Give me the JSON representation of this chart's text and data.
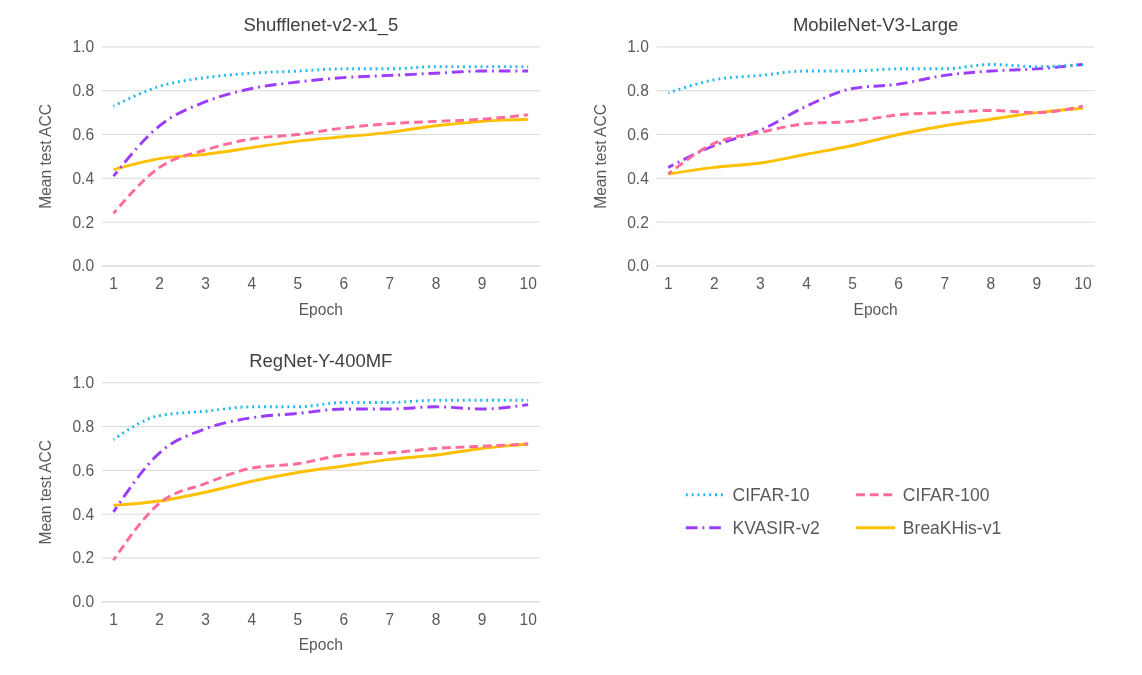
{
  "chart_data": [
    {
      "type": "line",
      "title": "Shufflenet-v2-x1_5",
      "xlabel": "Epoch",
      "ylabel": "Mean test  ACC",
      "categories": [
        "1",
        "2",
        "3",
        "4",
        "5",
        "6",
        "7",
        "8",
        "9",
        "10"
      ],
      "ylim": [
        0,
        1
      ],
      "yticks": [
        {
          "value": 0,
          "label": "0.0"
        },
        {
          "value": 0.2,
          "label": "0.2"
        },
        {
          "value": 0.4,
          "label": "0.4"
        },
        {
          "value": 0.6,
          "label": "0.6"
        },
        {
          "value": 0.8,
          "label": "0.8"
        },
        {
          "value": 1,
          "label": "1.0"
        }
      ],
      "grid": "y",
      "legend": "bottom right",
      "series": [
        {
          "name": "CIFAR-10",
          "color": "#1fb8f0",
          "line_style": "dotted",
          "values": [
            0.73,
            0.82,
            0.86,
            0.88,
            0.89,
            0.9,
            0.9,
            0.91,
            0.91,
            0.91
          ]
        },
        {
          "name": "CIFAR-100",
          "color": "#ff6b9a",
          "line_style": "dashed",
          "values": [
            0.24,
            0.45,
            0.53,
            0.58,
            0.6,
            0.63,
            0.65,
            0.66,
            0.67,
            0.69
          ]
        },
        {
          "name": "KVASIR-v2",
          "color": "#9b3cff",
          "line_style": "dashdot",
          "values": [
            0.41,
            0.64,
            0.75,
            0.81,
            0.84,
            0.86,
            0.87,
            0.88,
            0.89,
            0.89
          ]
        },
        {
          "name": "BreaKHis-v1",
          "color": "#ffc000",
          "line_style": "solid",
          "values": [
            0.44,
            0.49,
            0.51,
            0.54,
            0.57,
            0.59,
            0.61,
            0.64,
            0.66,
            0.67
          ]
        }
      ]
    },
    {
      "type": "line",
      "title": "MobileNet-V3-Large",
      "xlabel": "Epoch",
      "ylabel": "Mean test  ACC",
      "categories": [
        "1",
        "2",
        "3",
        "4",
        "5",
        "6",
        "7",
        "8",
        "9",
        "10"
      ],
      "ylim": [
        0,
        1
      ],
      "yticks": [
        {
          "value": 0,
          "label": "0.0"
        },
        {
          "value": 0.2,
          "label": "0.2"
        },
        {
          "value": 0.4,
          "label": "0.4"
        },
        {
          "value": 0.6,
          "label": "0.6"
        },
        {
          "value": 0.8,
          "label": "0.8"
        },
        {
          "value": 1,
          "label": "1.0"
        }
      ],
      "grid": "y",
      "legend": false,
      "series": [
        {
          "color": "#1fb8f0",
          "line_style": "dotted",
          "values": [
            0.79,
            0.85,
            0.87,
            0.89,
            0.89,
            0.9,
            0.9,
            0.92,
            0.91,
            0.92
          ]
        },
        {
          "color": "#ff6b9a",
          "line_style": "dashed",
          "values": [
            0.42,
            0.56,
            0.61,
            0.65,
            0.66,
            0.69,
            0.7,
            0.71,
            0.7,
            0.73
          ]
        },
        {
          "color": "#9b3cff",
          "line_style": "dashdot",
          "values": [
            0.45,
            0.55,
            0.62,
            0.73,
            0.81,
            0.83,
            0.87,
            0.89,
            0.9,
            0.92
          ]
        },
        {
          "color": "#ffc000",
          "line_style": "solid",
          "values": [
            0.42,
            0.45,
            0.47,
            0.51,
            0.55,
            0.6,
            0.64,
            0.67,
            0.7,
            0.72
          ]
        }
      ]
    },
    {
      "type": "line",
      "title": "RegNet-Y-400MF",
      "xlabel": "Epoch",
      "ylabel": "Mean test  ACC",
      "categories": [
        "1",
        "2",
        "3",
        "4",
        "5",
        "6",
        "7",
        "8",
        "9",
        "10"
      ],
      "ylim": [
        0,
        1
      ],
      "yticks": [
        {
          "value": 0,
          "label": "0.0"
        },
        {
          "value": 0.2,
          "label": "0.2"
        },
        {
          "value": 0.4,
          "label": "0.4"
        },
        {
          "value": 0.6,
          "label": "0.6"
        },
        {
          "value": 0.8,
          "label": "0.8"
        },
        {
          "value": 1,
          "label": "1.0"
        }
      ],
      "grid": "y",
      "legend": false,
      "series": [
        {
          "color": "#1fb8f0",
          "line_style": "dotted",
          "values": [
            0.74,
            0.85,
            0.87,
            0.89,
            0.89,
            0.91,
            0.91,
            0.92,
            0.92,
            0.92
          ]
        },
        {
          "color": "#ff6b9a",
          "line_style": "dashed",
          "values": [
            0.19,
            0.45,
            0.54,
            0.61,
            0.63,
            0.67,
            0.68,
            0.7,
            0.71,
            0.72
          ]
        },
        {
          "color": "#9b3cff",
          "line_style": "dashdot",
          "values": [
            0.41,
            0.68,
            0.79,
            0.84,
            0.86,
            0.88,
            0.88,
            0.89,
            0.88,
            0.9
          ]
        },
        {
          "color": "#ffc000",
          "line_style": "solid",
          "values": [
            0.44,
            0.46,
            0.5,
            0.55,
            0.59,
            0.62,
            0.65,
            0.67,
            0.7,
            0.72
          ]
        }
      ]
    }
  ]
}
